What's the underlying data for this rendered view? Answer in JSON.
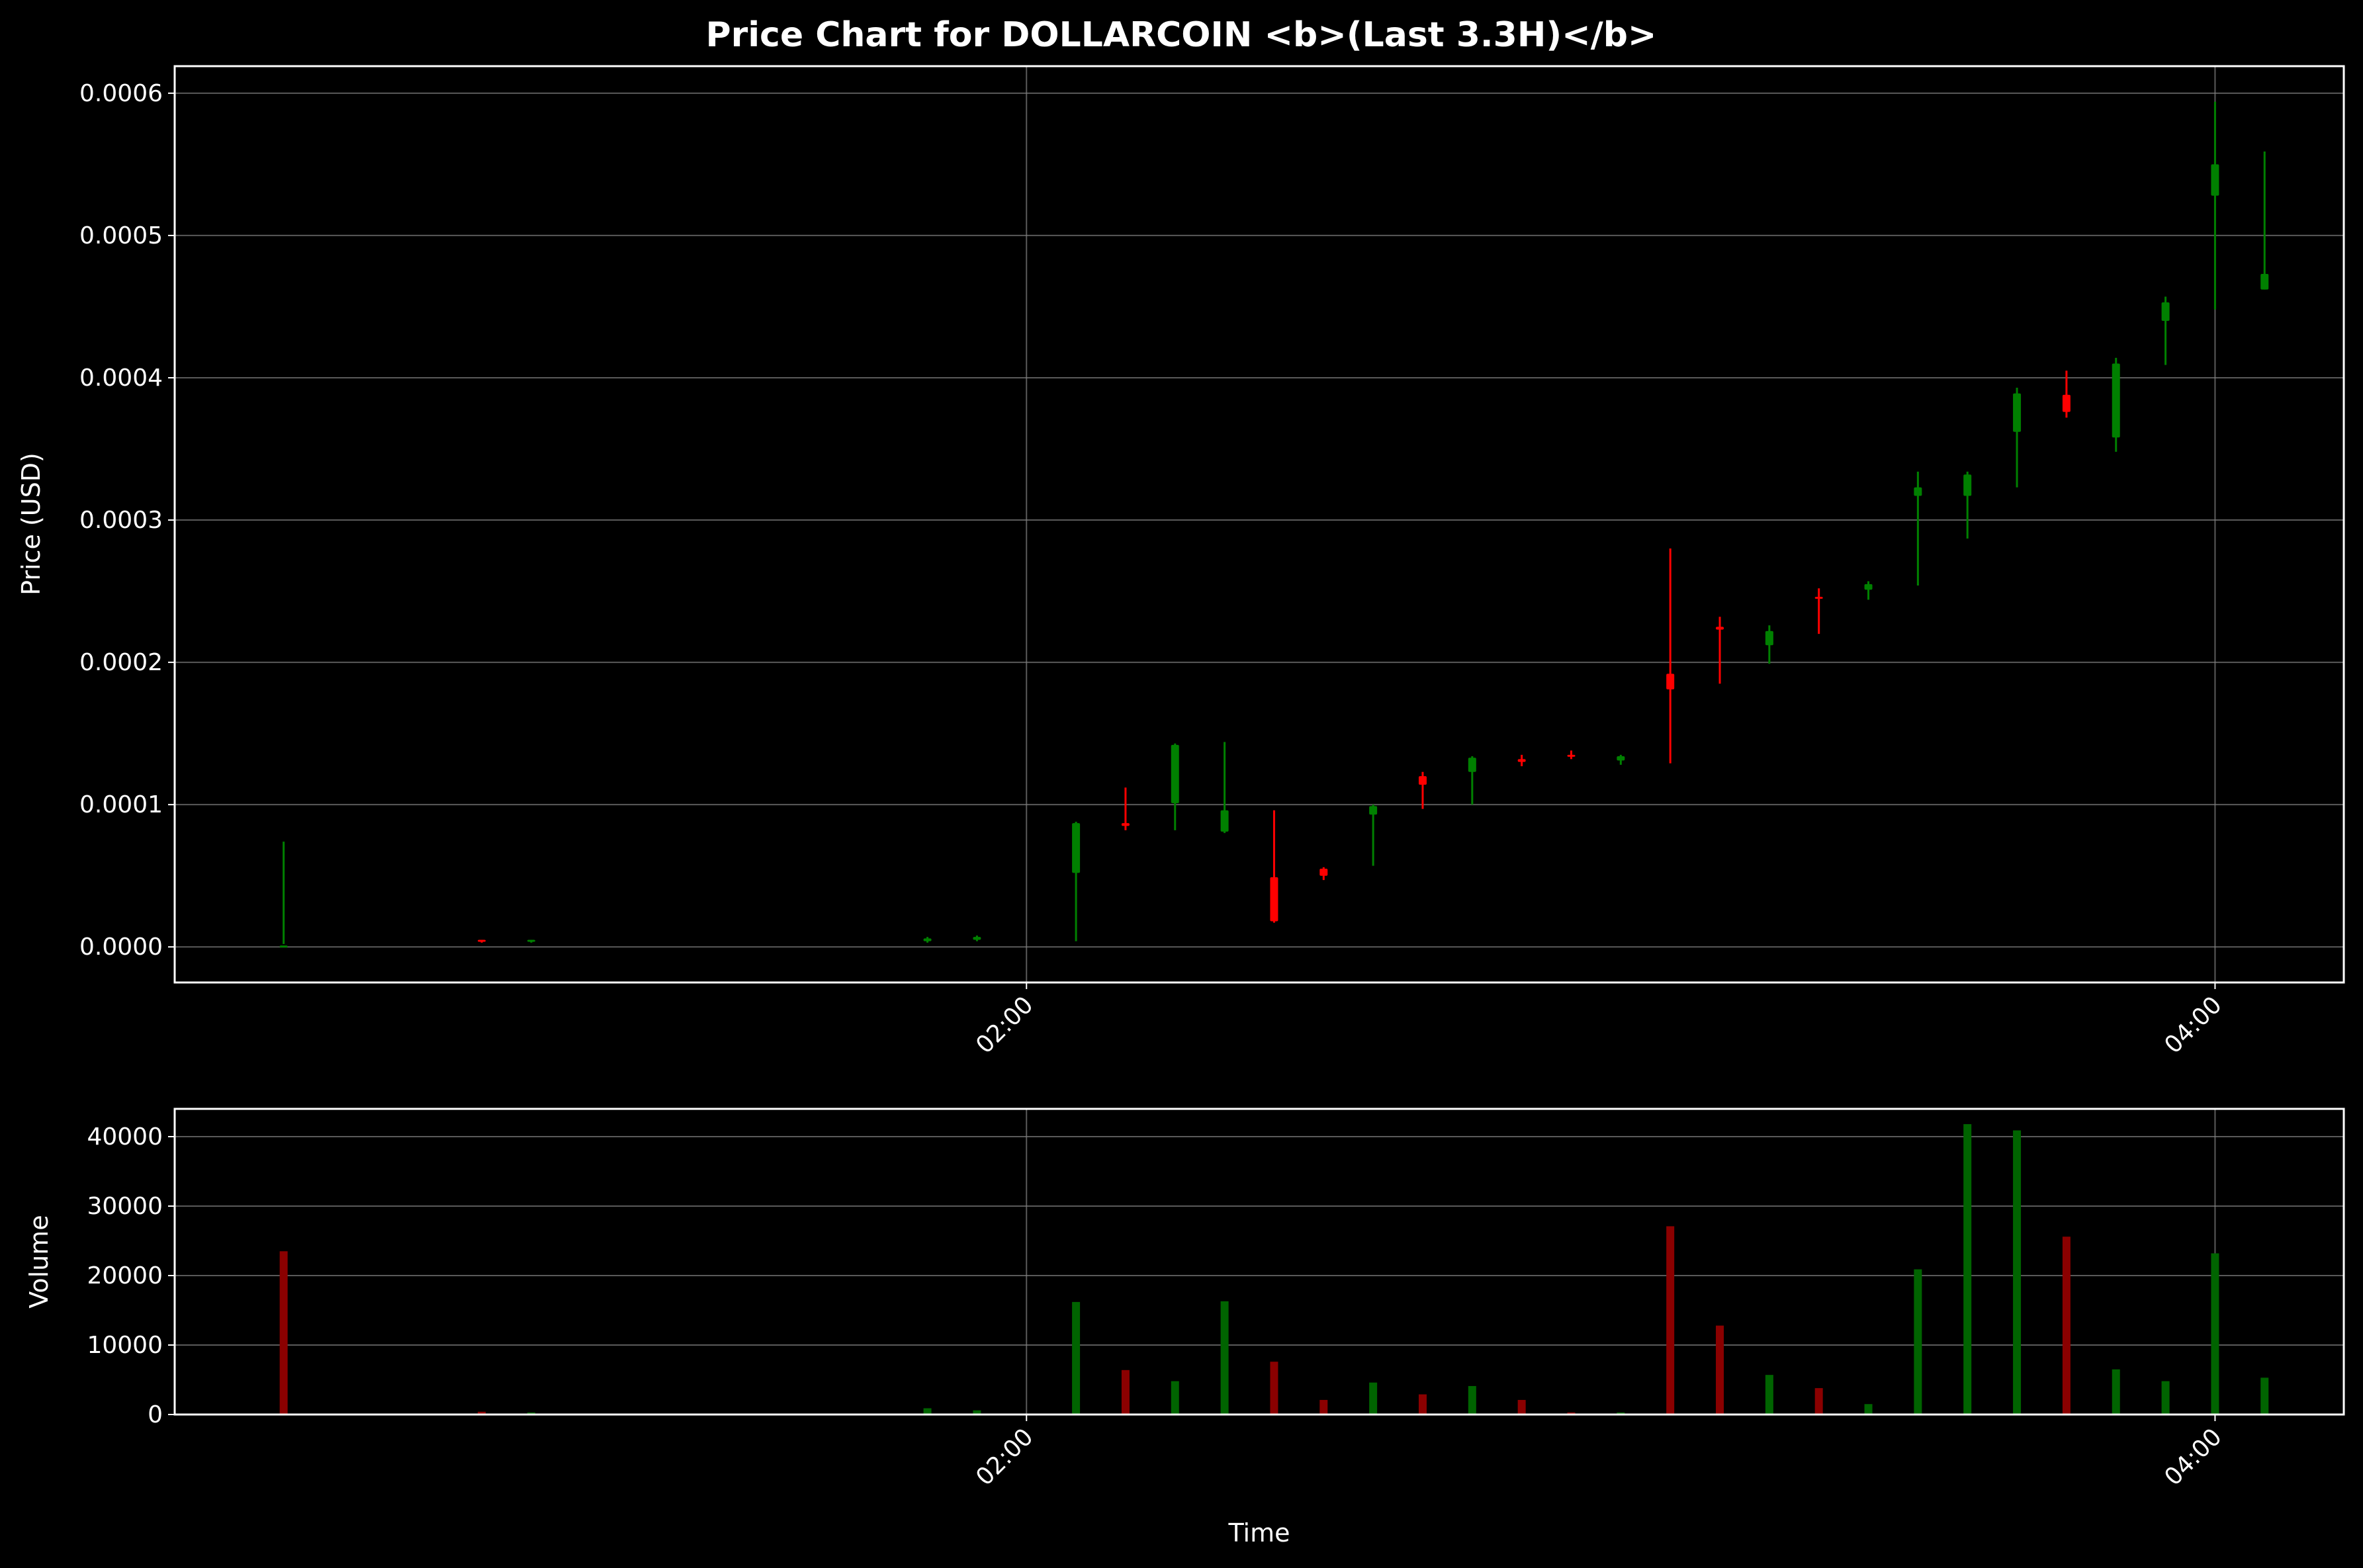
{
  "colors": {
    "background": "#000000",
    "foreground": "#ffffff",
    "grid": "#808080",
    "up": "#008000",
    "down": "#ff0000",
    "volume_up": "#006400",
    "volume_down": "#8b0000"
  },
  "chart_data": [
    {
      "type": "candlestick",
      "title": "Price Chart for DOLLARCOIN <b>(Last 3.3H)</b>",
      "xlabel": "",
      "ylabel": "Price (USD)",
      "xlim": [
        "00:34",
        "04:13"
      ],
      "ylim": [
        -2.5e-05,
        0.000619
      ],
      "x_ticks": [
        "02:00",
        "04:00"
      ],
      "y_ticks": [
        "0.0000",
        "0.0001",
        "0.0002",
        "0.0003",
        "0.0004",
        "0.0005",
        "0.0006"
      ],
      "grid": true,
      "candles": [
        {
          "t": "00:45",
          "open": 1e-06,
          "high": 7.4e-05,
          "low": 2e-06,
          "close": 1e-06
        },
        {
          "t": "01:05",
          "open": 5e-06,
          "high": 5e-06,
          "low": 3e-06,
          "close": 4e-06
        },
        {
          "t": "01:10",
          "open": 4e-06,
          "high": 5e-06,
          "low": 3e-06,
          "close": 5e-06
        },
        {
          "t": "01:50",
          "open": 4e-06,
          "high": 7e-06,
          "low": 3e-06,
          "close": 6e-06
        },
        {
          "t": "01:55",
          "open": 5e-06,
          "high": 8e-06,
          "low": 4e-06,
          "close": 7e-06
        },
        {
          "t": "02:05",
          "open": 5.2e-05,
          "high": 8.8e-05,
          "low": 4e-06,
          "close": 8.7e-05
        },
        {
          "t": "02:10",
          "open": 8.7e-05,
          "high": 0.000112,
          "low": 8.2e-05,
          "close": 8.5e-05
        },
        {
          "t": "02:15",
          "open": 0.000101,
          "high": 0.000143,
          "low": 8.2e-05,
          "close": 0.000142
        },
        {
          "t": "02:20",
          "open": 8.1e-05,
          "high": 0.000144,
          "low": 8e-05,
          "close": 9.6e-05
        },
        {
          "t": "02:25",
          "open": 4.9e-05,
          "high": 9.6e-05,
          "low": 1.7e-05,
          "close": 1.8e-05
        },
        {
          "t": "02:30",
          "open": 5.5e-05,
          "high": 5.6e-05,
          "low": 4.7e-05,
          "close": 5e-05
        },
        {
          "t": "02:35",
          "open": 9.3e-05,
          "high": 0.0001,
          "low": 5.7e-05,
          "close": 9.9e-05
        },
        {
          "t": "02:40",
          "open": 0.00012,
          "high": 0.000123,
          "low": 9.7e-05,
          "close": 0.000114
        },
        {
          "t": "02:45",
          "open": 0.000123,
          "high": 0.000134,
          "low": 0.0001,
          "close": 0.000133
        },
        {
          "t": "02:50",
          "open": 0.000132,
          "high": 0.000135,
          "low": 0.000127,
          "close": 0.00013
        },
        {
          "t": "02:55",
          "open": 0.000135,
          "high": 0.000138,
          "low": 0.000132,
          "close": 0.000134
        },
        {
          "t": "03:00",
          "open": 0.000131,
          "high": 0.000135,
          "low": 0.000128,
          "close": 0.000134
        },
        {
          "t": "03:05",
          "open": 0.000192,
          "high": 0.00028,
          "low": 0.000129,
          "close": 0.000181
        },
        {
          "t": "03:10",
          "open": 0.000225,
          "high": 0.000232,
          "low": 0.000185,
          "close": 0.000223
        },
        {
          "t": "03:15",
          "open": 0.000212,
          "high": 0.000226,
          "low": 0.000199,
          "close": 0.000222
        },
        {
          "t": "03:20",
          "open": 0.000246,
          "high": 0.000252,
          "low": 0.00022,
          "close": 0.000245
        },
        {
          "t": "03:25",
          "open": 0.000251,
          "high": 0.000257,
          "low": 0.000244,
          "close": 0.000255
        },
        {
          "t": "03:30",
          "open": 0.000317,
          "high": 0.000334,
          "low": 0.000254,
          "close": 0.000323
        },
        {
          "t": "03:35",
          "open": 0.000317,
          "high": 0.000334,
          "low": 0.000287,
          "close": 0.000332
        },
        {
          "t": "03:40",
          "open": 0.000362,
          "high": 0.000393,
          "low": 0.000323,
          "close": 0.000389
        },
        {
          "t": "03:45",
          "open": 0.000388,
          "high": 0.000405,
          "low": 0.000372,
          "close": 0.000376
        },
        {
          "t": "03:50",
          "open": 0.000358,
          "high": 0.000414,
          "low": 0.000348,
          "close": 0.00041
        },
        {
          "t": "03:55",
          "open": 0.00044,
          "high": 0.000457,
          "low": 0.000409,
          "close": 0.000453
        },
        {
          "t": "04:00",
          "open": 0.000528,
          "high": 0.000594,
          "low": 0.000448,
          "close": 0.00055
        },
        {
          "t": "04:05",
          "open": 0.000462,
          "high": 0.000559,
          "low": 0.000462,
          "close": 0.000473
        }
      ]
    },
    {
      "type": "bar",
      "title": "",
      "xlabel": "Time",
      "ylabel": "Volume",
      "xlim": [
        "00:34",
        "04:13"
      ],
      "ylim": [
        0,
        44000
      ],
      "x_ticks": [
        "02:00",
        "04:00"
      ],
      "y_ticks": [
        "0",
        "10000",
        "20000",
        "30000",
        "40000"
      ],
      "grid": true,
      "bars": [
        {
          "t": "00:45",
          "value": 23500,
          "dir": "down"
        },
        {
          "t": "01:05",
          "value": 400,
          "dir": "down"
        },
        {
          "t": "01:10",
          "value": 300,
          "dir": "up"
        },
        {
          "t": "01:50",
          "value": 900,
          "dir": "up"
        },
        {
          "t": "01:55",
          "value": 600,
          "dir": "up"
        },
        {
          "t": "02:05",
          "value": 16200,
          "dir": "up"
        },
        {
          "t": "02:10",
          "value": 6400,
          "dir": "down"
        },
        {
          "t": "02:15",
          "value": 4800,
          "dir": "up"
        },
        {
          "t": "02:20",
          "value": 16300,
          "dir": "up"
        },
        {
          "t": "02:25",
          "value": 7600,
          "dir": "down"
        },
        {
          "t": "02:30",
          "value": 2100,
          "dir": "down"
        },
        {
          "t": "02:35",
          "value": 4600,
          "dir": "up"
        },
        {
          "t": "02:40",
          "value": 2900,
          "dir": "down"
        },
        {
          "t": "02:45",
          "value": 4100,
          "dir": "up"
        },
        {
          "t": "02:50",
          "value": 2100,
          "dir": "down"
        },
        {
          "t": "02:55",
          "value": 300,
          "dir": "down"
        },
        {
          "t": "03:00",
          "value": 300,
          "dir": "up"
        },
        {
          "t": "03:05",
          "value": 27100,
          "dir": "down"
        },
        {
          "t": "03:10",
          "value": 12800,
          "dir": "down"
        },
        {
          "t": "03:15",
          "value": 5700,
          "dir": "up"
        },
        {
          "t": "03:20",
          "value": 3800,
          "dir": "down"
        },
        {
          "t": "03:25",
          "value": 1500,
          "dir": "up"
        },
        {
          "t": "03:30",
          "value": 20900,
          "dir": "up"
        },
        {
          "t": "03:35",
          "value": 41800,
          "dir": "up"
        },
        {
          "t": "03:40",
          "value": 40900,
          "dir": "up"
        },
        {
          "t": "03:45",
          "value": 25600,
          "dir": "down"
        },
        {
          "t": "03:50",
          "value": 6500,
          "dir": "up"
        },
        {
          "t": "03:55",
          "value": 4800,
          "dir": "up"
        },
        {
          "t": "04:00",
          "value": 23200,
          "dir": "up"
        },
        {
          "t": "04:05",
          "value": 5300,
          "dir": "up"
        }
      ]
    }
  ]
}
